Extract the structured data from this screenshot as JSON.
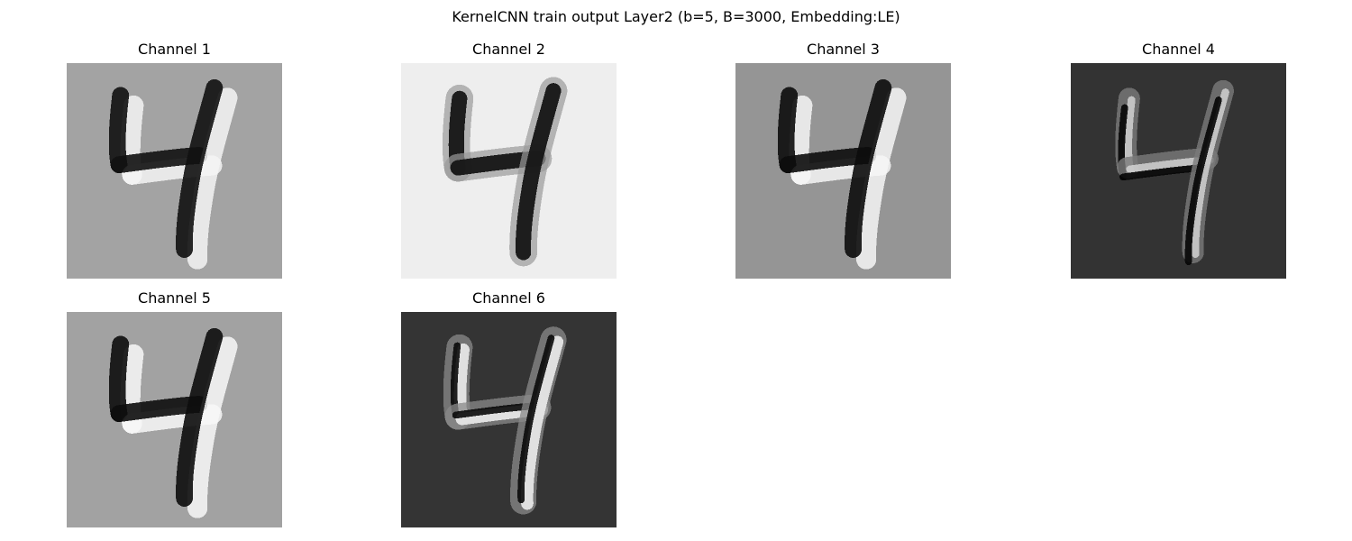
{
  "figure": {
    "title": "KernelCNN train output Layer2 (b=5, B=3000, Embedding:LE)"
  },
  "channels": [
    {
      "title": "Channel 1",
      "background": "#a3a3a3",
      "stroke_dark": "#111111",
      "stroke_light": "#f4f4f4",
      "style": "emboss"
    },
    {
      "title": "Channel 2",
      "background": "#eeeeee",
      "stroke_dark": "#151515",
      "stroke_light": "#ffffff",
      "style": "dark"
    },
    {
      "title": "Channel 3",
      "background": "#959595",
      "stroke_dark": "#0c0c0c",
      "stroke_light": "#f6f6f6",
      "style": "emboss"
    },
    {
      "title": "Channel 4",
      "background": "#333333",
      "stroke_dark": "#050505",
      "stroke_light": "#d8d8d8",
      "style": "sparse"
    },
    {
      "title": "Channel 5",
      "background": "#a2a2a2",
      "stroke_dark": "#0d0d0d",
      "stroke_light": "#f8f8f8",
      "style": "emboss"
    },
    {
      "title": "Channel 6",
      "background": "#343434",
      "stroke_dark": "#0a0a0a",
      "stroke_light": "#e6e6e6",
      "style": "bright"
    }
  ]
}
